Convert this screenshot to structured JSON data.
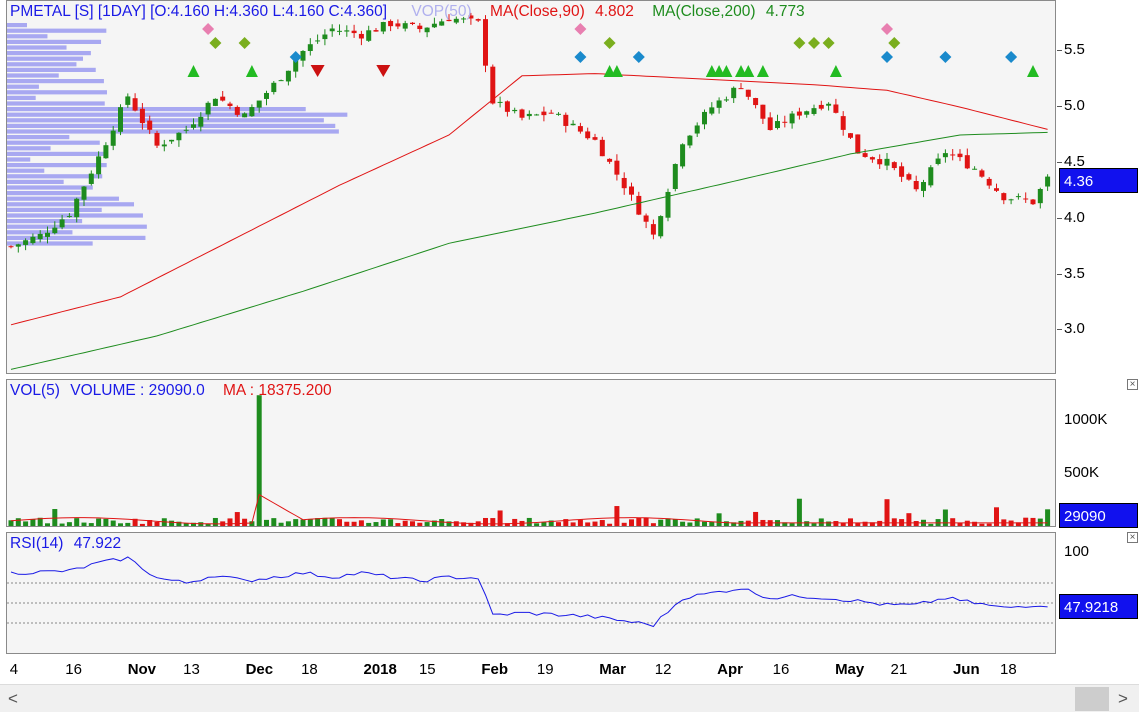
{
  "price_header": {
    "symbol_info": "PMETAL [S] [1DAY] [O:4.160 H:4.360 L:4.160 C:4.360]",
    "vop_label": "VOP(50)",
    "ma90_label": "MA(Close,90)",
    "ma90_value": "4.802",
    "ma200_label": "MA(Close,200)",
    "ma200_value": "4.773"
  },
  "price_axis": {
    "ticks": [
      "5.5",
      "5.0",
      "4.5",
      "4.0",
      "3.5",
      "3.0"
    ],
    "current": "4.36"
  },
  "volume_header": {
    "label": "VOL(5)",
    "volume_text": "VOLUME : 29090.0",
    "ma_text": "MA : 18375.200"
  },
  "volume_axis": {
    "ticks": [
      "1000K",
      "500K"
    ],
    "current": "29090"
  },
  "rsi_header": {
    "label": "RSI(14)",
    "value": "47.922"
  },
  "rsi_axis": {
    "ticks": [
      "100"
    ],
    "current": "47.9218"
  },
  "date_axis": [
    {
      "label": "4",
      "bold": false
    },
    {
      "label": "16",
      "bold": false
    },
    {
      "label": "Nov",
      "bold": true
    },
    {
      "label": "13",
      "bold": false
    },
    {
      "label": "Dec",
      "bold": true
    },
    {
      "label": "18",
      "bold": false
    },
    {
      "label": "2018",
      "bold": true
    },
    {
      "label": "15",
      "bold": false
    },
    {
      "label": "Feb",
      "bold": true
    },
    {
      "label": "19",
      "bold": false
    },
    {
      "label": "Mar",
      "bold": true
    },
    {
      "label": "12",
      "bold": false
    },
    {
      "label": "Apr",
      "bold": true
    },
    {
      "label": "16",
      "bold": false
    },
    {
      "label": "May",
      "bold": true
    },
    {
      "label": "21",
      "bold": false
    },
    {
      "label": "Jun",
      "bold": true
    },
    {
      "label": "18",
      "bold": false
    }
  ],
  "scrollbar": {
    "left_arrow": "<",
    "right_arrow": ">"
  },
  "colors": {
    "up": "#1e8c1e",
    "down": "#e01414",
    "ma90": "#e01414",
    "ma200": "#1e8c1e",
    "vop": "#9a9af0",
    "rsi": "#1a1ae6",
    "accent": "#1111ee"
  },
  "chart_data": {
    "type": "candlestick",
    "price_yrange": [
      2.6,
      5.95
    ],
    "close_path": [
      [
        0,
        3.75
      ],
      [
        4,
        3.85
      ],
      [
        8,
        4.05
      ],
      [
        12,
        4.55
      ],
      [
        16,
        5.1
      ],
      [
        20,
        4.65
      ],
      [
        24,
        4.8
      ],
      [
        28,
        5.1
      ],
      [
        32,
        4.92
      ],
      [
        36,
        5.2
      ],
      [
        40,
        5.5
      ],
      [
        44,
        5.7
      ],
      [
        48,
        5.65
      ],
      [
        52,
        5.75
      ],
      [
        56,
        5.7
      ],
      [
        60,
        5.8
      ],
      [
        64,
        5.75
      ],
      [
        66,
        5.05
      ],
      [
        70,
        4.9
      ],
      [
        74,
        4.95
      ],
      [
        80,
        4.7
      ],
      [
        84,
        4.3
      ],
      [
        88,
        3.85
      ],
      [
        92,
        4.7
      ],
      [
        96,
        5.0
      ],
      [
        100,
        5.2
      ],
      [
        104,
        4.8
      ],
      [
        108,
        4.95
      ],
      [
        112,
        5.05
      ],
      [
        116,
        4.6
      ],
      [
        120,
        4.5
      ],
      [
        124,
        4.25
      ],
      [
        128,
        4.6
      ],
      [
        132,
        4.45
      ],
      [
        136,
        4.2
      ],
      [
        140,
        4.15
      ],
      [
        142,
        4.36
      ]
    ],
    "ma90_path": [
      [
        0,
        3.05
      ],
      [
        15,
        3.3
      ],
      [
        30,
        3.8
      ],
      [
        45,
        4.3
      ],
      [
        60,
        4.75
      ],
      [
        70,
        5.28
      ],
      [
        80,
        5.3
      ],
      [
        95,
        5.25
      ],
      [
        110,
        5.2
      ],
      [
        120,
        5.15
      ],
      [
        130,
        5.0
      ],
      [
        142,
        4.8
      ]
    ],
    "ma200_path": [
      [
        0,
        2.65
      ],
      [
        20,
        2.95
      ],
      [
        40,
        3.35
      ],
      [
        60,
        3.78
      ],
      [
        80,
        4.05
      ],
      [
        100,
        4.35
      ],
      [
        115,
        4.58
      ],
      [
        130,
        4.75
      ],
      [
        142,
        4.773
      ]
    ],
    "volume_yrange": [
      0,
      1300000
    ],
    "volume_spike": {
      "index": 34,
      "value": 1250000
    },
    "rsi_path": [
      [
        0,
        80
      ],
      [
        8,
        82
      ],
      [
        12,
        90
      ],
      [
        16,
        95
      ],
      [
        20,
        75
      ],
      [
        24,
        70
      ],
      [
        28,
        78
      ],
      [
        32,
        72
      ],
      [
        36,
        76
      ],
      [
        40,
        80
      ],
      [
        44,
        76
      ],
      [
        48,
        80
      ],
      [
        52,
        76
      ],
      [
        56,
        72
      ],
      [
        60,
        76
      ],
      [
        64,
        75
      ],
      [
        66,
        38
      ],
      [
        70,
        40
      ],
      [
        76,
        38
      ],
      [
        80,
        36
      ],
      [
        84,
        32
      ],
      [
        88,
        28
      ],
      [
        92,
        55
      ],
      [
        96,
        60
      ],
      [
        100,
        65
      ],
      [
        104,
        55
      ],
      [
        108,
        57
      ],
      [
        112,
        55
      ],
      [
        116,
        52
      ],
      [
        120,
        48
      ],
      [
        124,
        48
      ],
      [
        128,
        55
      ],
      [
        132,
        50
      ],
      [
        136,
        45
      ],
      [
        140,
        48
      ],
      [
        142,
        47.92
      ]
    ],
    "rsi_guides": [
      70,
      50,
      30
    ]
  }
}
